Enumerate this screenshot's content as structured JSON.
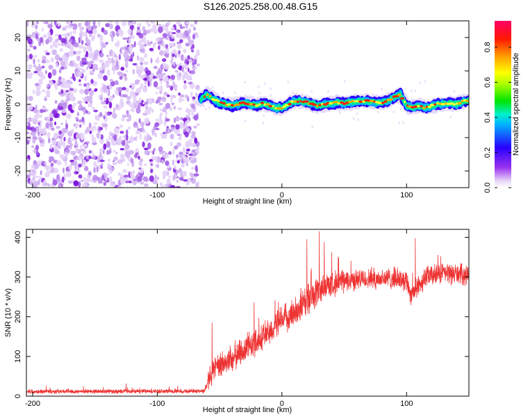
{
  "page_title": "S126.2025.258.00.48.G15",
  "chart_data": [
    {
      "type": "heatmap",
      "title": "S126.2025.258.00.48.G15",
      "xlabel": "Height of straight line (km)",
      "ylabel": "Frequency (Hz)",
      "xlim": [
        -205,
        150
      ],
      "ylim": [
        -25,
        25
      ],
      "xticks": [
        -200,
        -100,
        0,
        100
      ],
      "yticks": [
        -20,
        -10,
        0,
        10,
        20
      ],
      "noise_region": {
        "x_from": -205,
        "x_to": -67
      },
      "signal_track": {
        "x": [
          -65,
          -60,
          -55,
          -50,
          -45,
          -40,
          -35,
          -30,
          -25,
          -20,
          -15,
          -10,
          -5,
          0,
          5,
          10,
          15,
          20,
          25,
          30,
          35,
          40,
          45,
          50,
          55,
          60,
          65,
          70,
          75,
          80,
          85,
          90,
          95,
          100,
          105,
          110,
          115,
          120,
          125,
          130,
          135,
          140,
          145,
          150
        ],
        "y": [
          1.5,
          3.0,
          1.5,
          0.5,
          0.0,
          -0.5,
          0.0,
          0.5,
          0.0,
          -0.3,
          0.2,
          -0.5,
          -1.0,
          -1.0,
          0.0,
          0.8,
          1.0,
          0.5,
          0.0,
          -0.5,
          0.0,
          0.3,
          0.5,
          0.3,
          0.6,
          0.8,
          1.0,
          0.8,
          0.6,
          0.5,
          1.0,
          2.0,
          3.0,
          -0.5,
          -1.0,
          -0.5,
          -1.0,
          -0.6,
          0.0,
          0.3,
          0.4,
          0.0,
          0.8,
          1.2
        ]
      },
      "colorbar": {
        "label": "Normalized spectral amplitude",
        "range": [
          0,
          0.95
        ],
        "ticks": [
          0.0,
          0.2,
          0.4,
          0.6,
          0.8
        ],
        "tick_labels": [
          "0.0",
          "0.2",
          "0.4",
          "0.6",
          "0.8"
        ]
      }
    },
    {
      "type": "line",
      "xlabel": "Height of straight line (km)",
      "ylabel": "SNR (10 * v/v)",
      "xlim": [
        -205,
        150
      ],
      "ylim": [
        0,
        420
      ],
      "xticks": [
        -200,
        -100,
        0,
        100
      ],
      "yticks": [
        0,
        100,
        200,
        300,
        400
      ],
      "color": "#ee3333",
      "trend": {
        "x": [
          -205,
          -100,
          -62,
          -58,
          -50,
          -40,
          -30,
          -20,
          -10,
          0,
          10,
          20,
          30,
          40,
          50,
          60,
          70,
          80,
          90,
          100,
          103,
          108,
          115,
          130,
          150
        ],
        "y": [
          12,
          12,
          13,
          55,
          75,
          95,
          118,
          140,
          163,
          190,
          212,
          240,
          268,
          283,
          290,
          293,
          295,
          296,
          297,
          293,
          258,
          270,
          300,
          310,
          305
        ]
      },
      "spread": {
        "x": [
          -205,
          -62,
          -58,
          -40,
          -20,
          0,
          20,
          40,
          60,
          100,
          150
        ],
        "y": [
          6,
          6,
          35,
          38,
          40,
          38,
          45,
          35,
          28,
          30,
          28
        ]
      },
      "peaks": [
        {
          "x": 30,
          "y": 415
        },
        {
          "x": 20,
          "y": 395
        },
        {
          "x": 34,
          "y": 388
        },
        {
          "x": 107,
          "y": 398
        },
        {
          "x": -56,
          "y": 185
        },
        {
          "x": -125,
          "y": 32
        }
      ]
    }
  ]
}
